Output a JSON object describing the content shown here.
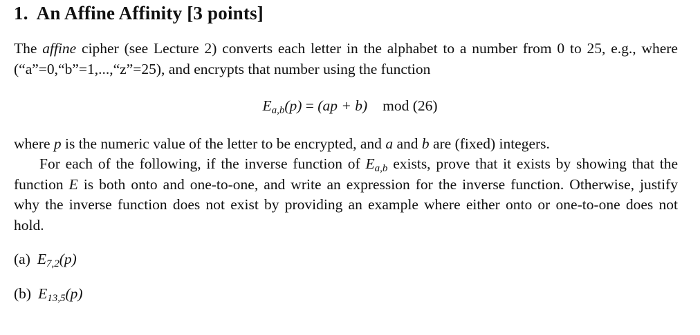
{
  "title": {
    "number": "1.",
    "text": "An Affine Affinity [3 points]"
  },
  "paragraph1": {
    "pre": "The ",
    "emph": "affine",
    "post": " cipher (see Lecture 2) converts each letter in the alphabet to a number from 0 to 25, e.g., where (“a”=0,“b”=1,...,“z”=25), and encrypts that number using the function"
  },
  "equation": {
    "lhs_fn": "E",
    "lhs_sub": "a,b",
    "lhs_arg": "(p)",
    "equals": " = ",
    "rhs": "(ap + b)",
    "mod": "mod (26)"
  },
  "paragraph2": {
    "t1": "where ",
    "v1": "p",
    "t2": " is the numeric value of the letter to be encrypted, and ",
    "v2": "a",
    "t3": " and ",
    "v3": "b",
    "t4": " are (fixed) integers."
  },
  "paragraph3": {
    "t1": "For each of the following, if the inverse function of ",
    "fn": "E",
    "sub": "a,b",
    "t2": " exists, prove that it exists by showing that the function ",
    "v": "E",
    "t3": " is both onto and one-to-one, and write an expression for the inverse function. Otherwise, justify why the inverse function does not exist by providing an example where either onto or one-to-one does not hold."
  },
  "items": [
    {
      "label": "(a)",
      "fn": "E",
      "sub": "7,2",
      "arg": "(p)"
    },
    {
      "label": "(b)",
      "fn": "E",
      "sub": "13,5",
      "arg": "(p)"
    }
  ]
}
